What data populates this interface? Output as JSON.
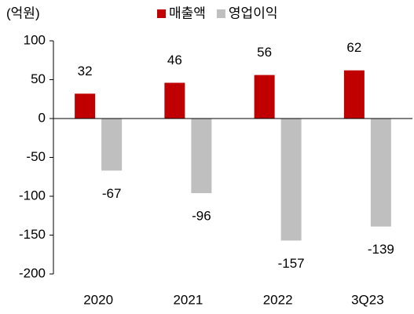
{
  "chart_data": {
    "type": "bar",
    "unit": "(억원)",
    "categories": [
      "2020",
      "2021",
      "2022",
      "3Q23"
    ],
    "series": [
      {
        "name": "매출액",
        "color": "#c00000",
        "values": [
          32,
          46,
          56,
          62
        ]
      },
      {
        "name": "영업이익",
        "color": "#bfbfbf",
        "values": [
          -67,
          -96,
          -157,
          -139
        ]
      }
    ],
    "ylim": [
      -200,
      100
    ],
    "yticks": [
      -200,
      -150,
      -100,
      -50,
      0,
      50,
      100
    ],
    "grid": false,
    "legend": "top"
  }
}
